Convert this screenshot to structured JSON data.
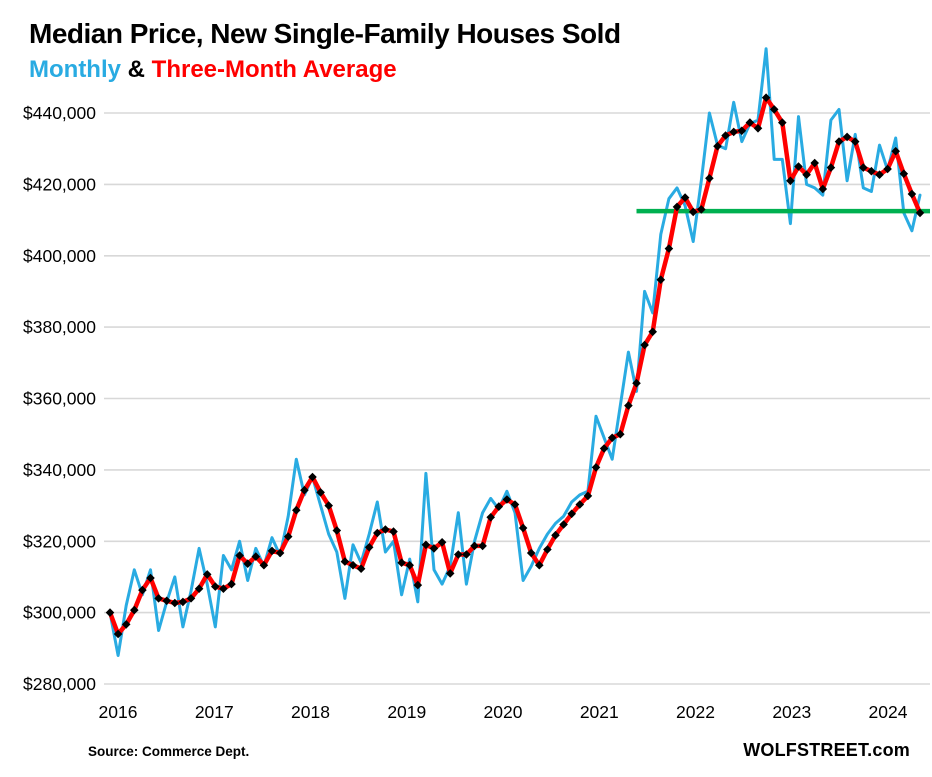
{
  "header": {
    "legend_separator": " & "
  },
  "footer": {
    "source": "Source: Commerce Dept.",
    "brand": "WOLFSTREET.com"
  },
  "chart_data": {
    "type": "line",
    "title": "Median Price, New Single-Family Houses Sold",
    "subtitle": "Monthly & Three-Month Average",
    "x_start": "2016-01",
    "x_frequency": "monthly",
    "x_tick_labels": [
      "2016",
      "2017",
      "2018",
      "2019",
      "2020",
      "2021",
      "2022",
      "2023",
      "2024"
    ],
    "y_ticks": [
      {
        "value": 280000,
        "label": "$280,000"
      },
      {
        "value": 300000,
        "label": "$300,000"
      },
      {
        "value": 320000,
        "label": "$320,000"
      },
      {
        "value": 340000,
        "label": "$340,000"
      },
      {
        "value": 360000,
        "label": "$360,000"
      },
      {
        "value": 380000,
        "label": "$380,000"
      },
      {
        "value": 400000,
        "label": "$400,000"
      },
      {
        "value": 420000,
        "label": "$420,000"
      },
      {
        "value": 440000,
        "label": "$440,000"
      }
    ],
    "y_range": [
      275000,
      462000
    ],
    "grid": "horizontal",
    "grid_color": "#D8D8D8",
    "legend_position": "subtitle",
    "reference_line": {
      "value": 412500,
      "color": "#00B050",
      "start_month": "2021-06",
      "start_index": 65
    },
    "series": [
      {
        "name": "Monthly",
        "color": "#29ABE2",
        "marker": "none",
        "values": [
          300000,
          288000,
          302000,
          312000,
          305000,
          312000,
          295000,
          303000,
          310000,
          296000,
          306000,
          318000,
          308000,
          296000,
          316000,
          312000,
          320000,
          309000,
          318000,
          313000,
          321000,
          316000,
          327000,
          343000,
          333000,
          338000,
          330000,
          322000,
          317000,
          304000,
          319000,
          314000,
          322000,
          331000,
          317000,
          320000,
          305000,
          315000,
          303000,
          339000,
          312000,
          308000,
          313000,
          328000,
          308000,
          320000,
          328000,
          332000,
          329000,
          334000,
          328000,
          309000,
          313000,
          318000,
          322000,
          325000,
          327000,
          331000,
          333000,
          334000,
          355000,
          349000,
          343000,
          358000,
          373000,
          362000,
          390000,
          384000,
          406000,
          416000,
          419000,
          414000,
          404000,
          421000,
          440000,
          431000,
          430000,
          443000,
          432000,
          437000,
          438000,
          458000,
          427000,
          427000,
          409000,
          439000,
          420000,
          419000,
          417000,
          438000,
          441000,
          421000,
          434000,
          419000,
          418000,
          431000,
          424000,
          433000,
          412000,
          407000,
          417000
        ]
      },
      {
        "name": "Three-Month Average",
        "color": "#FF0000",
        "marker": "diamond",
        "marker_color": "#000000",
        "values": [
          300000,
          294000,
          296700,
          300700,
          306300,
          309700,
          304000,
          303300,
          302700,
          303000,
          304000,
          306700,
          310700,
          307300,
          306700,
          308000,
          316000,
          313700,
          315700,
          313300,
          317300,
          316700,
          321300,
          328700,
          334300,
          338000,
          333700,
          330000,
          323000,
          314300,
          313300,
          312300,
          318300,
          322300,
          323300,
          322700,
          314000,
          313300,
          307700,
          319000,
          318000,
          319700,
          311000,
          316300,
          316300,
          318700,
          318700,
          326700,
          329700,
          331700,
          330300,
          323700,
          316700,
          313300,
          317700,
          321700,
          324700,
          327700,
          330300,
          332700,
          340700,
          346000,
          349000,
          350000,
          358000,
          364300,
          375000,
          378700,
          393300,
          402000,
          413700,
          416300,
          412300,
          413000,
          421700,
          430700,
          433700,
          434700,
          435000,
          437300,
          435700,
          444300,
          441000,
          437300,
          421000,
          425000,
          422700,
          426000,
          418700,
          424700,
          432000,
          433300,
          432000,
          424700,
          423700,
          422700,
          424300,
          429300,
          423000,
          417300,
          412000
        ]
      }
    ]
  }
}
